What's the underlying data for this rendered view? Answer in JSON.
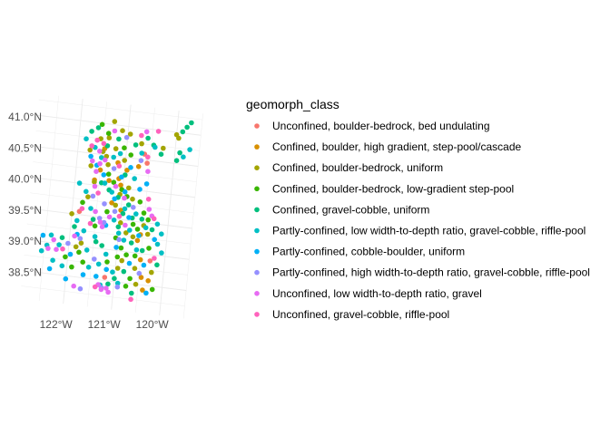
{
  "chart_data": {
    "type": "scatter",
    "title": "",
    "xlabel": "",
    "ylabel": "",
    "x_ticks": [
      "122°W",
      "121°W",
      "120°W"
    ],
    "y_ticks": [
      "41.0°N",
      "40.5°N",
      "40.0°N",
      "39.5°N",
      "39.0°N",
      "38.5°N"
    ],
    "x_tick_values": [
      -122,
      -121,
      -120
    ],
    "y_tick_values": [
      41.0,
      40.5,
      40.0,
      39.5,
      39.0,
      38.5
    ],
    "xlim": [
      -122.9,
      -119.5
    ],
    "ylim": [
      38.05,
      41.35
    ],
    "grid": true,
    "legend": {
      "title": "geomorph_class",
      "position": "right",
      "entries": [
        {
          "name": "Unconfined, boulder-bedrock, bed undulating",
          "color": "#F8766D"
        },
        {
          "name": "Confined, boulder, high gradient, step-pool/cascade",
          "color": "#D89000"
        },
        {
          "name": "Confined, boulder-bedrock, uniform",
          "color": "#A3A500"
        },
        {
          "name": "Confined, boulder-bedrock, low-gradient step-pool",
          "color": "#39B600"
        },
        {
          "name": "Confined, gravel-cobble, uniform",
          "color": "#00BF7D"
        },
        {
          "name": "Partly-confined, low width-to-depth ratio, gravel-cobble, riffle-pool",
          "color": "#00BFC4"
        },
        {
          "name": "Partly-confined, cobble-boulder, uniform",
          "color": "#00B0F6"
        },
        {
          "name": "Partly-confined, high width-to-depth ratio, gravel-cobble, riffle-pool",
          "color": "#9590FF"
        },
        {
          "name": "Unconfined, low width-to-depth ratio, gravel",
          "color": "#E76BF3"
        },
        {
          "name": "Unconfined, gravel-cobble, riffle-pool",
          "color": "#FF62BC"
        }
      ]
    },
    "series": [
      {
        "class_index": 0,
        "points": [
          [
            -120.62,
            40.59
          ],
          [
            -120.55,
            40.45
          ],
          [
            -121.85,
            39.55
          ],
          [
            -121.2,
            38.55
          ],
          [
            -120.3,
            38.9
          ]
        ]
      },
      {
        "class_index": 1,
        "points": [
          [
            -121.45,
            40.6
          ],
          [
            -121.15,
            40.4
          ],
          [
            -120.95,
            40.3
          ],
          [
            -121.1,
            40.15
          ],
          [
            -121.3,
            40.1
          ],
          [
            -121.6,
            40.08
          ],
          [
            -121.2,
            39.75
          ],
          [
            -121.0,
            39.65
          ],
          [
            -120.55,
            39.3
          ],
          [
            -120.6,
            39.2
          ],
          [
            -120.5,
            38.9
          ],
          [
            -120.45,
            38.62
          ],
          [
            -120.4,
            38.42
          ],
          [
            -120.3,
            38.58
          ],
          [
            -121.05,
            40.05
          ],
          [
            -121.5,
            40.25
          ],
          [
            -120.72,
            40.38
          ]
        ]
      },
      {
        "class_index": 2,
        "points": [
          [
            -121.3,
            41.05
          ],
          [
            -121.12,
            40.92
          ],
          [
            -120.95,
            40.88
          ],
          [
            -120.7,
            40.75
          ],
          [
            -121.38,
            40.78
          ],
          [
            -121.55,
            40.75
          ],
          [
            -121.48,
            40.55
          ],
          [
            -121.22,
            40.62
          ],
          [
            -121.35,
            40.35
          ],
          [
            -121.02,
            40.45
          ],
          [
            -120.88,
            40.02
          ],
          [
            -120.78,
            39.85
          ],
          [
            -121.05,
            39.9
          ],
          [
            -121.12,
            39.72
          ],
          [
            -120.98,
            39.45
          ],
          [
            -120.85,
            39.3
          ],
          [
            -120.5,
            39.45
          ],
          [
            -120.4,
            39.32
          ],
          [
            -120.7,
            39.25
          ],
          [
            -120.88,
            38.85
          ],
          [
            -120.95,
            38.72
          ],
          [
            -120.6,
            38.75
          ],
          [
            -120.55,
            38.5
          ],
          [
            -121.7,
            40.3
          ],
          [
            -121.6,
            40.05
          ],
          [
            -121.7,
            39.8
          ],
          [
            -121.75,
            39.05
          ],
          [
            -121.85,
            38.98
          ],
          [
            -122.0,
            39.5
          ],
          [
            -121.4,
            40.48
          ],
          [
            -120.25,
            38.72
          ],
          [
            -121.75,
            40.55
          ],
          [
            -120.0,
            40.96
          ],
          [
            -119.95,
            40.91
          ],
          [
            -120.25,
            40.72
          ]
        ]
      },
      {
        "class_index": 3,
        "points": [
          [
            -121.55,
            40.98
          ],
          [
            -121.4,
            40.85
          ],
          [
            -121.05,
            40.65
          ],
          [
            -120.9,
            40.55
          ],
          [
            -121.32,
            40.2
          ],
          [
            -121.2,
            40.08
          ],
          [
            -121.02,
            39.98
          ],
          [
            -120.9,
            39.88
          ],
          [
            -120.62,
            39.82
          ],
          [
            -120.52,
            39.65
          ],
          [
            -120.42,
            39.55
          ],
          [
            -120.72,
            39.45
          ],
          [
            -120.62,
            39.38
          ],
          [
            -121.05,
            39.2
          ],
          [
            -120.92,
            39.05
          ],
          [
            -120.8,
            38.95
          ],
          [
            -120.98,
            38.9
          ],
          [
            -120.62,
            38.95
          ],
          [
            -121.18,
            38.8
          ],
          [
            -120.68,
            38.58
          ],
          [
            -120.75,
            38.45
          ],
          [
            -121.78,
            38.9
          ],
          [
            -121.9,
            38.65
          ],
          [
            -121.68,
            38.75
          ],
          [
            -122.05,
            38.8
          ],
          [
            -121.28,
            39.6
          ],
          [
            -120.2,
            38.45
          ],
          [
            -120.35,
            39.1
          ],
          [
            -121.8,
            39.7
          ],
          [
            -121.5,
            39.35
          ]
        ]
      },
      {
        "class_index": 4,
        "points": [
          [
            -121.62,
            40.92
          ],
          [
            -121.18,
            40.78
          ],
          [
            -120.82,
            40.72
          ],
          [
            -120.58,
            40.85
          ],
          [
            -120.45,
            40.75
          ],
          [
            -120.28,
            40.62
          ],
          [
            -121.75,
            40.85
          ],
          [
            -121.4,
            40.65
          ],
          [
            -120.98,
            40.22
          ],
          [
            -121.45,
            40.05
          ],
          [
            -121.08,
            39.85
          ],
          [
            -120.85,
            39.75
          ],
          [
            -120.55,
            39.55
          ],
          [
            -120.75,
            39.55
          ],
          [
            -120.32,
            39.4
          ],
          [
            -121.02,
            39.38
          ],
          [
            -120.72,
            39.15
          ],
          [
            -121.32,
            39.05
          ],
          [
            -120.82,
            38.68
          ],
          [
            -121.0,
            38.55
          ],
          [
            -121.12,
            38.45
          ],
          [
            -120.62,
            38.35
          ],
          [
            -122.15,
            39.1
          ],
          [
            -121.55,
            39.45
          ],
          [
            -121.92,
            39.3
          ],
          [
            -120.15,
            38.85
          ],
          [
            -119.88,
            41.02
          ],
          [
            -119.8,
            41.1
          ],
          [
            -119.72,
            41.18
          ],
          [
            -119.9,
            40.68
          ],
          [
            -119.95,
            40.55
          ],
          [
            -121.28,
            39.95
          ],
          [
            -120.95,
            39.6
          ],
          [
            -121.45,
            39.1
          ],
          [
            -120.48,
            39.05
          ]
        ]
      },
      {
        "class_index": 5,
        "points": [
          [
            -121.85,
            40.72
          ],
          [
            -121.65,
            40.6
          ],
          [
            -121.5,
            40.45
          ],
          [
            -121.25,
            40.48
          ],
          [
            -121.12,
            40.55
          ],
          [
            -120.68,
            40.6
          ],
          [
            -120.42,
            40.72
          ],
          [
            -121.38,
            40.05
          ],
          [
            -121.22,
            39.92
          ],
          [
            -120.92,
            39.68
          ],
          [
            -120.68,
            39.62
          ],
          [
            -120.45,
            39.42
          ],
          [
            -120.22,
            39.5
          ],
          [
            -120.12,
            39.35
          ],
          [
            -120.18,
            39.18
          ],
          [
            -120.08,
            39.05
          ],
          [
            -121.12,
            39.48
          ],
          [
            -121.0,
            39.28
          ],
          [
            -120.78,
            39.35
          ],
          [
            -120.6,
            39.05
          ],
          [
            -121.22,
            38.92
          ],
          [
            -121.35,
            38.75
          ],
          [
            -121.05,
            38.65
          ],
          [
            -120.92,
            38.48
          ],
          [
            -122.3,
            38.72
          ],
          [
            -122.45,
            38.95
          ],
          [
            -122.55,
            38.85
          ],
          [
            -122.38,
            39.12
          ],
          [
            -121.72,
            39.25
          ],
          [
            -121.88,
            39.4
          ],
          [
            -121.62,
            39.62
          ],
          [
            -121.75,
            39.88
          ],
          [
            -121.9,
            40.0
          ],
          [
            -121.55,
            38.68
          ],
          [
            -119.7,
            40.75
          ],
          [
            -119.82,
            40.62
          ],
          [
            -120.78,
            40.18
          ],
          [
            -121.28,
            38.42
          ],
          [
            -122.1,
            38.65
          ],
          [
            -121.62,
            38.95
          ],
          [
            -122.2,
            38.98
          ],
          [
            -121.48,
            39.18
          ],
          [
            -120.88,
            39.18
          ]
        ]
      },
      {
        "class_index": 6,
        "points": [
          [
            -121.72,
            40.45
          ],
          [
            -121.58,
            40.32
          ],
          [
            -121.42,
            40.18
          ],
          [
            -121.05,
            40.18
          ],
          [
            -120.88,
            40.35
          ],
          [
            -121.15,
            39.82
          ],
          [
            -120.82,
            39.55
          ],
          [
            -120.58,
            39.28
          ],
          [
            -120.25,
            39.25
          ],
          [
            -120.42,
            38.82
          ],
          [
            -121.28,
            39.38
          ],
          [
            -121.02,
            39.05
          ],
          [
            -121.18,
            38.68
          ],
          [
            -121.38,
            38.55
          ],
          [
            -122.55,
            39.1
          ],
          [
            -122.35,
            38.58
          ],
          [
            -121.95,
            38.85
          ],
          [
            -121.65,
            38.55
          ],
          [
            -120.32,
            38.38
          ],
          [
            -121.85,
            39.18
          ],
          [
            -120.95,
            39.95
          ],
          [
            -120.65,
            40.02
          ],
          [
            -120.52,
            40.12
          ],
          [
            -120.72,
            38.82
          ],
          [
            -122.0,
            38.45
          ]
        ]
      },
      {
        "class_index": 7,
        "points": [
          [
            -121.02,
            40.82
          ],
          [
            -120.68,
            40.48
          ],
          [
            -121.35,
            39.72
          ],
          [
            -121.12,
            39.62
          ],
          [
            -120.75,
            39.72
          ],
          [
            -121.42,
            39.48
          ],
          [
            -121.32,
            39.42
          ],
          [
            -120.98,
            39.18
          ],
          [
            -120.92,
            38.42
          ],
          [
            -121.68,
            38.32
          ],
          [
            -121.45,
            38.82
          ],
          [
            -121.78,
            39.12
          ],
          [
            -121.6,
            39.82
          ],
          [
            -120.5,
            38.68
          ],
          [
            -121.25,
            38.38
          ],
          [
            -121.22,
            40.3
          ],
          [
            -122.02,
            39.02
          ]
        ]
      },
      {
        "class_index": 8,
        "points": [
          [
            -121.68,
            40.38
          ],
          [
            -121.52,
            40.35
          ],
          [
            -121.58,
            40.22
          ],
          [
            -121.42,
            40.42
          ],
          [
            -121.28,
            40.9
          ],
          [
            -120.62,
            40.95
          ],
          [
            -121.15,
            40.02
          ],
          [
            -120.42,
            39.72
          ],
          [
            -120.35,
            39.62
          ],
          [
            -121.22,
            39.52
          ],
          [
            -121.4,
            39.42
          ],
          [
            -121.35,
            39.35
          ],
          [
            -120.95,
            39.85
          ],
          [
            -121.25,
            38.35
          ],
          [
            -121.15,
            38.38
          ],
          [
            -121.32,
            38.42
          ],
          [
            -121.1,
            38.32
          ],
          [
            -122.32,
            39.05
          ],
          [
            -122.42,
            38.9
          ],
          [
            -121.82,
            38.35
          ],
          [
            -121.52,
            39.58
          ],
          [
            -120.88,
            39.42
          ],
          [
            -121.58,
            39.98
          ],
          [
            -121.55,
            40.55
          ],
          [
            -120.52,
            40.32
          ],
          [
            -121.9,
            39.15
          ],
          [
            -122.25,
            38.9
          ]
        ]
      },
      {
        "class_index": 9,
        "points": [
          [
            -121.72,
            40.62
          ],
          [
            -121.62,
            40.72
          ],
          [
            -120.72,
            40.88
          ],
          [
            -120.38,
            40.98
          ],
          [
            -121.12,
            40.35
          ],
          [
            -121.5,
            39.88
          ],
          [
            -121.02,
            39.55
          ],
          [
            -120.45,
            39.88
          ],
          [
            -120.3,
            39.58
          ],
          [
            -120.22,
            38.95
          ],
          [
            -121.6,
            39.38
          ],
          [
            -122.12,
            38.92
          ],
          [
            -121.38,
            38.38
          ],
          [
            -120.55,
            40.55
          ],
          [
            -120.62,
            38.25
          ],
          [
            -121.48,
            40.68
          ],
          [
            -121.8,
            39.6
          ]
        ]
      }
    ]
  }
}
